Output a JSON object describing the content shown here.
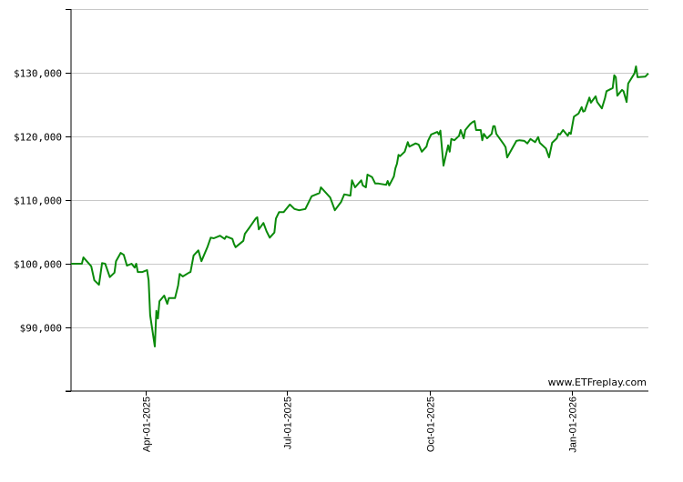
{
  "chart_data": {
    "type": "line",
    "title": "",
    "xlabel": "",
    "ylabel": "",
    "xlim": [
      "2025-02-12",
      "2026-02-19"
    ],
    "ylim": [
      80000,
      140000
    ],
    "yticks": [
      80000,
      90000,
      100000,
      110000,
      120000,
      130000,
      140000
    ],
    "ytick_labels": [
      "",
      "$90,000",
      "$100,000",
      "$110,000",
      "$120,000",
      "$130,000",
      ""
    ],
    "xticks": [
      "2025-04-01",
      "2025-07-01",
      "2025-10-01",
      "2026-01-01"
    ],
    "xtick_labels": [
      "Apr-01-2025",
      "Jul-01-2025",
      "Oct-01-2025",
      "Jan-01-2026"
    ],
    "grid": "horizontal",
    "line_color": "#0a8a0a",
    "grid_color": "#c8c8c8",
    "watermark": "www.ETFreplay.com",
    "series": [
      {
        "dates": [
          "2025-02-12",
          "2025-02-19",
          "2025-02-20",
          "2025-02-25",
          "2025-02-27",
          "2025-03-02",
          "2025-03-04",
          "2025-03-06",
          "2025-03-09",
          "2025-03-12",
          "2025-03-13",
          "2025-03-16",
          "2025-03-18",
          "2025-03-20",
          "2025-03-23",
          "2025-03-25",
          "2025-03-26",
          "2025-03-27",
          "2025-03-30",
          "2025-04-02",
          "2025-04-03",
          "2025-04-04",
          "2025-04-07",
          "2025-04-08",
          "2025-04-09",
          "2025-04-10",
          "2025-04-13",
          "2025-04-15",
          "2025-04-16",
          "2025-04-20",
          "2025-04-22",
          "2025-04-23",
          "2025-04-25",
          "2025-04-29",
          "2025-04-30",
          "2025-05-02",
          "2025-05-05",
          "2025-05-07",
          "2025-05-11",
          "2025-05-13",
          "2025-05-15",
          "2025-05-19",
          "2025-05-22",
          "2025-05-23",
          "2025-05-27",
          "2025-05-28",
          "2025-05-29",
          "2025-06-03",
          "2025-06-04",
          "2025-06-07",
          "2025-06-11",
          "2025-06-12",
          "2025-06-13",
          "2025-06-16",
          "2025-06-18",
          "2025-06-20",
          "2025-06-23",
          "2025-06-24",
          "2025-06-26",
          "2025-06-29",
          "2025-07-03",
          "2025-07-06",
          "2025-07-09",
          "2025-07-13",
          "2025-07-17",
          "2025-07-22",
          "2025-07-23",
          "2025-07-29",
          "2025-08-01",
          "2025-08-05",
          "2025-08-07",
          "2025-08-11",
          "2025-08-12",
          "2025-08-14",
          "2025-08-18",
          "2025-08-19",
          "2025-08-21",
          "2025-08-22",
          "2025-08-25",
          "2025-08-27",
          "2025-08-29",
          "2025-09-03",
          "2025-09-04",
          "2025-09-05",
          "2025-09-08",
          "2025-09-09",
          "2025-09-10",
          "2025-09-11",
          "2025-09-12",
          "2025-09-15",
          "2025-09-17",
          "2025-09-18",
          "2025-09-22",
          "2025-09-24",
          "2025-09-26",
          "2025-09-29",
          "2025-09-30",
          "2025-10-02",
          "2025-10-06",
          "2025-10-07",
          "2025-10-08",
          "2025-10-10",
          "2025-10-13",
          "2025-10-14",
          "2025-10-15",
          "2025-10-17",
          "2025-10-20",
          "2025-10-21",
          "2025-10-23",
          "2025-10-24",
          "2025-10-27",
          "2025-10-29",
          "2025-10-30",
          "2025-10-31",
          "2025-11-03",
          "2025-11-04",
          "2025-11-05",
          "2025-11-07",
          "2025-11-10",
          "2025-11-11",
          "2025-11-12",
          "2025-11-13",
          "2025-11-18",
          "2025-11-19",
          "2025-11-20",
          "2025-11-26",
          "2025-11-28",
          "2025-12-01",
          "2025-12-03",
          "2025-12-05",
          "2025-12-08",
          "2025-12-10",
          "2025-12-11",
          "2025-12-15",
          "2025-12-17",
          "2025-12-19",
          "2025-12-22",
          "2025-12-23",
          "2025-12-24",
          "2025-12-26",
          "2025-12-29",
          "2025-12-30",
          "2025-12-31",
          "2026-01-02",
          "2026-01-05",
          "2026-01-07",
          "2026-01-08",
          "2026-01-09",
          "2026-01-12",
          "2026-01-13",
          "2026-01-16",
          "2026-01-17",
          "2026-01-20",
          "2026-01-22",
          "2026-01-23",
          "2026-01-27",
          "2026-01-28",
          "2026-01-29",
          "2026-01-30",
          "2026-02-02",
          "2026-02-03",
          "2026-02-05",
          "2026-02-06",
          "2026-02-10",
          "2026-02-11",
          "2026-02-12",
          "2026-02-17",
          "2026-02-19"
        ],
        "values": [
          100000,
          100000,
          101000,
          99600,
          97400,
          96700,
          100100,
          100000,
          97900,
          98600,
          100400,
          101700,
          101400,
          99700,
          100000,
          99400,
          100000,
          98700,
          98700,
          99000,
          97400,
          91900,
          87000,
          92600,
          91400,
          94100,
          95000,
          93700,
          94600,
          94600,
          96600,
          98400,
          98000,
          98600,
          98700,
          101300,
          102100,
          100400,
          102700,
          104100,
          104000,
          104400,
          103900,
          104300,
          103900,
          103100,
          102600,
          103600,
          104700,
          105700,
          107100,
          107300,
          105400,
          106400,
          105100,
          104100,
          104900,
          107100,
          108100,
          108100,
          109300,
          108600,
          108400,
          108600,
          110600,
          111100,
          112000,
          110400,
          108400,
          109700,
          110900,
          110700,
          113100,
          112000,
          113100,
          112300,
          112000,
          114000,
          113600,
          112600,
          112600,
          112400,
          113000,
          112300,
          113700,
          115000,
          115700,
          117100,
          116900,
          117600,
          119100,
          118400,
          118900,
          118700,
          117600,
          118400,
          119300,
          120300,
          120700,
          120300,
          120900,
          115400,
          118600,
          117600,
          119600,
          119400,
          120100,
          121000,
          119700,
          121000,
          121900,
          122300,
          122400,
          121000,
          121000,
          119400,
          120400,
          119700,
          120400,
          121600,
          121600,
          120400,
          118700,
          118300,
          116700,
          119300,
          119400,
          119300,
          118900,
          119600,
          119100,
          119900,
          119000,
          118100,
          116700,
          119000,
          119700,
          120400,
          120300,
          121000,
          120100,
          120600,
          120400,
          123100,
          123600,
          124600,
          123900,
          124000,
          126100,
          125300,
          126300,
          125400,
          124400,
          126000,
          127100,
          127600,
          129600,
          129300,
          126400,
          127300,
          127100,
          125400,
          128300,
          129900,
          131000,
          129300,
          129400,
          129900
        ]
      }
    ]
  }
}
